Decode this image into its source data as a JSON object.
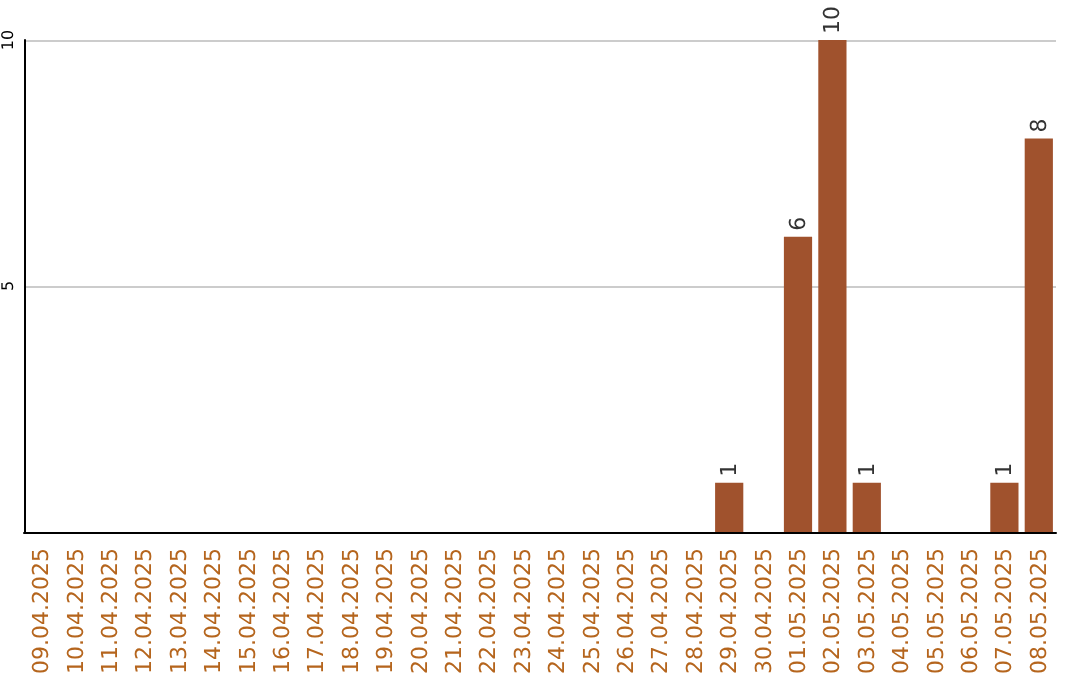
{
  "chart_data": {
    "type": "bar",
    "categories": [
      "09.04.2025",
      "10.04.2025",
      "11.04.2025",
      "12.04.2025",
      "13.04.2025",
      "14.04.2025",
      "15.04.2025",
      "16.04.2025",
      "17.04.2025",
      "18.04.2025",
      "19.04.2025",
      "20.04.2025",
      "21.04.2025",
      "22.04.2025",
      "23.04.2025",
      "24.04.2025",
      "25.04.2025",
      "26.04.2025",
      "27.04.2025",
      "28.04.2025",
      "29.04.2025",
      "30.04.2025",
      "01.05.2025",
      "02.05.2025",
      "03.05.2025",
      "04.05.2025",
      "05.05.2025",
      "06.05.2025",
      "07.05.2025",
      "08.05.2025"
    ],
    "values": [
      0,
      0,
      0,
      0,
      0,
      0,
      0,
      0,
      0,
      0,
      0,
      0,
      0,
      0,
      0,
      0,
      0,
      0,
      0,
      0,
      1,
      0,
      6,
      10,
      1,
      0,
      0,
      0,
      1,
      8
    ],
    "value_labels": [
      null,
      null,
      null,
      null,
      null,
      null,
      null,
      null,
      null,
      null,
      null,
      null,
      null,
      null,
      null,
      null,
      null,
      null,
      null,
      null,
      "1",
      null,
      "6",
      "10",
      "1",
      null,
      null,
      null,
      "1",
      "8"
    ],
    "color": "#a0522d",
    "ylim": [
      0,
      10
    ],
    "yticks": [
      5,
      10
    ],
    "grid": "y"
  }
}
